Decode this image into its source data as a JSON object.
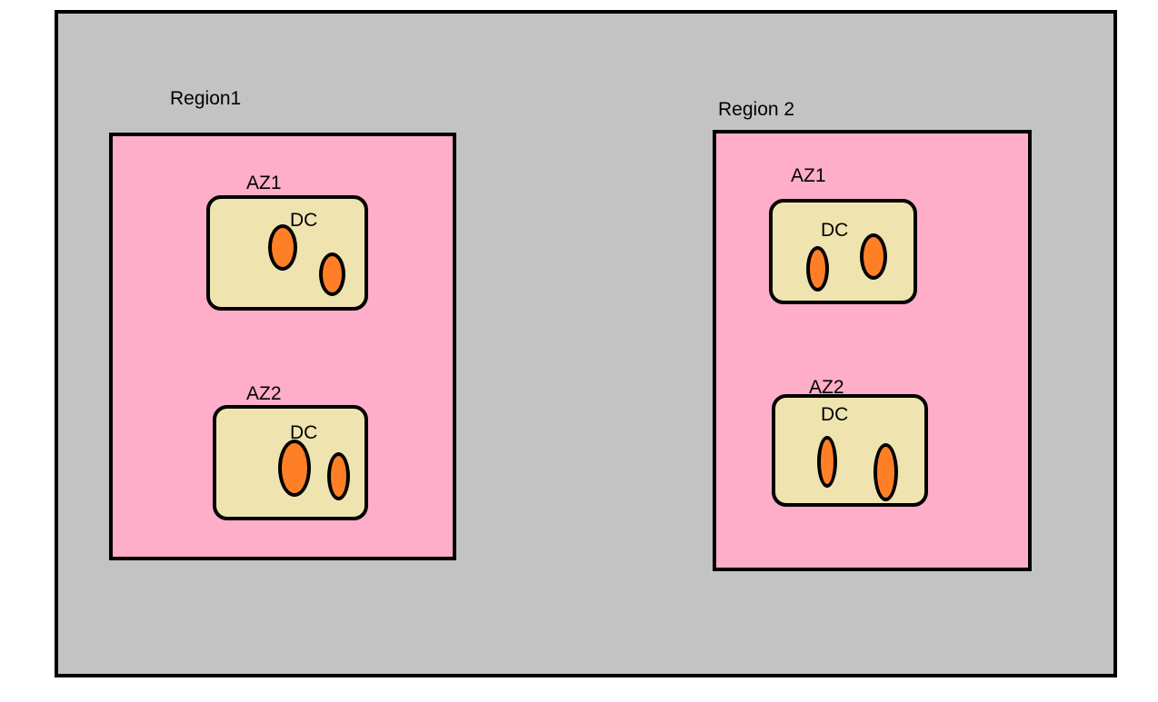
{
  "colors": {
    "background": "#c3c3c3",
    "region_fill": "#ffaec9",
    "az_fill": "#efe4b0",
    "server_fill": "#ff7f27",
    "stroke": "#000000"
  },
  "regions": [
    {
      "label": "Region1",
      "zones": [
        {
          "label": "AZ1",
          "dc_label": "DC",
          "server_count": 2
        },
        {
          "label": "AZ2",
          "dc_label": "DC",
          "server_count": 2
        }
      ]
    },
    {
      "label": "Region 2",
      "zones": [
        {
          "label": "AZ1",
          "dc_label": "DC",
          "server_count": 2
        },
        {
          "label": "AZ2",
          "dc_label": "DC",
          "server_count": 2
        }
      ]
    }
  ]
}
